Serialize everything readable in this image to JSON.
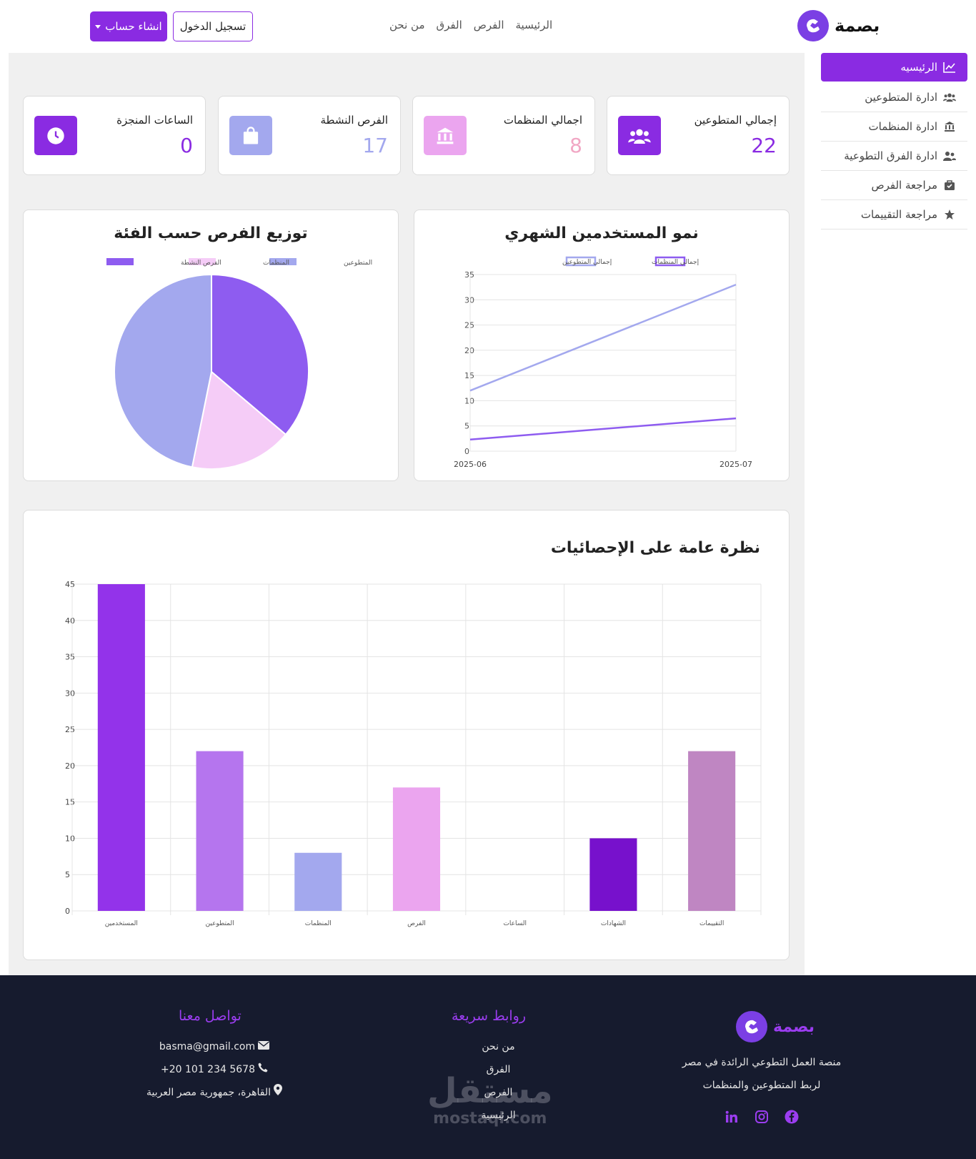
{
  "brand": {
    "name": "بصمة"
  },
  "nav": {
    "items": [
      "الرئيسية",
      "الفرص",
      "الفرق",
      "من نحن"
    ]
  },
  "auth": {
    "login_label": "تسجيل الدخول",
    "signup_label": "انشاء حساب"
  },
  "sidebar": {
    "items": [
      {
        "label": "الرئيسيه",
        "icon": "chart-line-icon",
        "active": true
      },
      {
        "label": "ادارة المتطوعين",
        "icon": "users-icon"
      },
      {
        "label": "ادارة المنظمات",
        "icon": "landmark-icon"
      },
      {
        "label": "ادارة الفرق التطوعية",
        "icon": "user-group-icon"
      },
      {
        "label": "مراجعة الفرص",
        "icon": "briefcase-icon"
      },
      {
        "label": "مراجعة التقييمات",
        "icon": "star-icon"
      }
    ]
  },
  "stats": [
    {
      "label": "إجمالي المتطوعين",
      "value": "22",
      "icon": "users-icon",
      "color": "#8a2be2",
      "value_color": "#8a2be2"
    },
    {
      "label": "اجمالي المنظمات",
      "value": "8",
      "icon": "landmark-icon",
      "color": "#eba5ef",
      "value_color": "#f1a7c4"
    },
    {
      "label": "الفرص النشطة",
      "value": "17",
      "icon": "briefcase-icon",
      "color": "#a3a8ee",
      "value_color": "#a3a8ee"
    },
    {
      "label": "الساعات المنجزة",
      "value": "0",
      "icon": "clock-icon",
      "color": "#8a2be2",
      "value_color": "#8a2be2"
    }
  ],
  "colors": {
    "accent": "#8a2be2",
    "footer_bg": "#161b2e",
    "main_bg": "#f0f0f0"
  },
  "chart_data": [
    {
      "type": "line",
      "title": "نمو المستخدمين الشهري",
      "x": [
        "2025-06",
        "2025-07"
      ],
      "ylim": [
        0,
        35
      ],
      "yticks": [
        0,
        5,
        10,
        15,
        20,
        25,
        30,
        35
      ],
      "grid": true,
      "legend_position": "top",
      "series": [
        {
          "name": "إجمالي المتطوعين",
          "values": [
            12,
            33
          ],
          "color": "#a3a8ee"
        },
        {
          "name": "إجمالي المنظمات",
          "values": [
            2.3,
            6.5
          ],
          "color": "#8e5cf0"
        }
      ]
    },
    {
      "type": "pie",
      "title": "توزيع الفرص حسب الفئة",
      "legend_position": "top",
      "labels": [
        "المتطوعين",
        "المنظمات",
        "الفرص النشطة"
      ],
      "values": [
        22,
        8,
        17
      ],
      "colors": [
        "#a3a8ee",
        "#f5ccf7",
        "#8e5cf0"
      ]
    },
    {
      "type": "bar",
      "title": "نظرة عامة على الإحصائيات",
      "categories": [
        "المستخدمين",
        "المتطوعين",
        "المنظمات",
        "الفرص",
        "الساعات",
        "الشهادات",
        "التقييمات"
      ],
      "values": [
        45,
        22,
        8,
        17,
        0,
        10,
        22
      ],
      "colors": [
        "#9333ea",
        "#b575ee",
        "#a3a8ee",
        "#eba5ef",
        "#9333ea",
        "#7711cc",
        "#bf86c2"
      ],
      "ylim": [
        0,
        45
      ],
      "yticks": [
        0,
        5,
        10,
        15,
        20,
        25,
        30,
        35,
        40,
        45
      ],
      "grid": true
    }
  ],
  "footer": {
    "brand_name": "بصمة",
    "description_line1": "منصة العمل التطوعي الرائدة في مصر",
    "description_line2": "لربط المتطوعين والمنظمات",
    "social": [
      "facebook-icon",
      "instagram-icon",
      "linkedin-icon"
    ],
    "quick_links_title": "روابط سريعة",
    "quick_links": [
      "من نحن",
      "الفرق",
      "الفرص",
      "الرئيسية"
    ],
    "contact_title": "تواصل معنا",
    "email": "basma@gmail.com",
    "phone": "+20 101 234 5678",
    "address": "القاهرة، جمهورية مصر العربية"
  },
  "watermark": {
    "ar": "مستقل",
    "en": "mostaql.com"
  }
}
